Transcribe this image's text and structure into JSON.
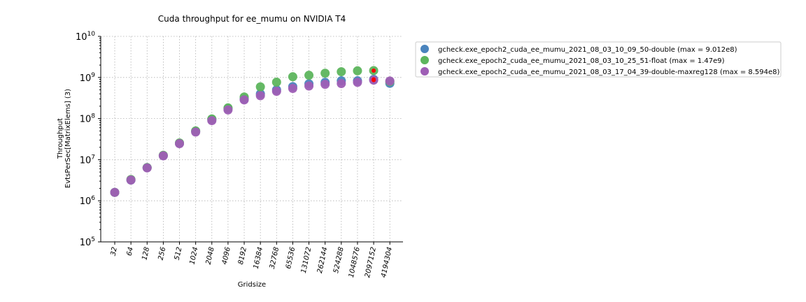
{
  "chart_data": {
    "type": "scatter",
    "title": "Cuda throughput for ee_mumu on NVIDIA T4",
    "xlabel": "Gridsize",
    "ylabel": [
      "Throughput",
      "EvtsPerSec[MatrixElems] (3)"
    ],
    "yscale": "log",
    "ylim": [
      100000,
      10000000000
    ],
    "ytick_exponents": [
      5,
      6,
      7,
      8,
      9,
      10
    ],
    "grid": true,
    "legend_position": "outside-top-right",
    "categories": [
      "32",
      "64",
      "128",
      "256",
      "512",
      "1024",
      "2048",
      "4096",
      "8192",
      "16384",
      "32768",
      "65536",
      "131072",
      "262144",
      "524288",
      "1048576",
      "2097152",
      "4194304"
    ],
    "series": [
      {
        "name": "gcheck.exe_epoch2_cuda_ee_mumu_2021_08_03_10_09_50-double (max = 9.012e8)",
        "color": "#4a84bd",
        "values": [
          1600000.0,
          3200000.0,
          6400000.0,
          12500000.0,
          25000000.0,
          49000000.0,
          95000000.0,
          175000000.0,
          300000000.0,
          400000000.0,
          500000000.0,
          600000000.0,
          700000000.0,
          760000000.0,
          830000000.0,
          830000000.0,
          900000000.0,
          720000000.0
        ]
      },
      {
        "name": "gcheck.exe_epoch2_cuda_ee_mumu_2021_08_03_10_25_51-float (max = 1.47e9)",
        "color": "#5db55d",
        "values": [
          1600000.0,
          3300000.0,
          6400000.0,
          12800000.0,
          25500000.0,
          50000000.0,
          98000000.0,
          182000000.0,
          335000000.0,
          590000000.0,
          770000000.0,
          1040000000.0,
          1130000000.0,
          1270000000.0,
          1380000000.0,
          1450000000.0,
          1470000000.0,
          790000000.0
        ]
      },
      {
        "name": "gcheck.exe_epoch2_cuda_ee_mumu_2021_08_03_17_04_39-double-maxreg128 (max = 8.594e8)",
        "color": "#9e5eb5",
        "values": [
          1600000.0,
          3200000.0,
          6300000.0,
          12400000.0,
          24500000.0,
          47000000.0,
          89000000.0,
          162000000.0,
          285000000.0,
          360000000.0,
          460000000.0,
          540000000.0,
          620000000.0,
          680000000.0,
          710000000.0,
          760000000.0,
          860000000.0,
          820000000.0
        ]
      }
    ],
    "max_markers": [
      {
        "category": "2097152",
        "value": 1470000000.0,
        "color": "#ff0000"
      },
      {
        "category": "2097152",
        "value": 901200000.0,
        "color": "#ff0000"
      },
      {
        "category": "2097152",
        "value": 859400000.0,
        "color": "#ff0000"
      }
    ]
  }
}
